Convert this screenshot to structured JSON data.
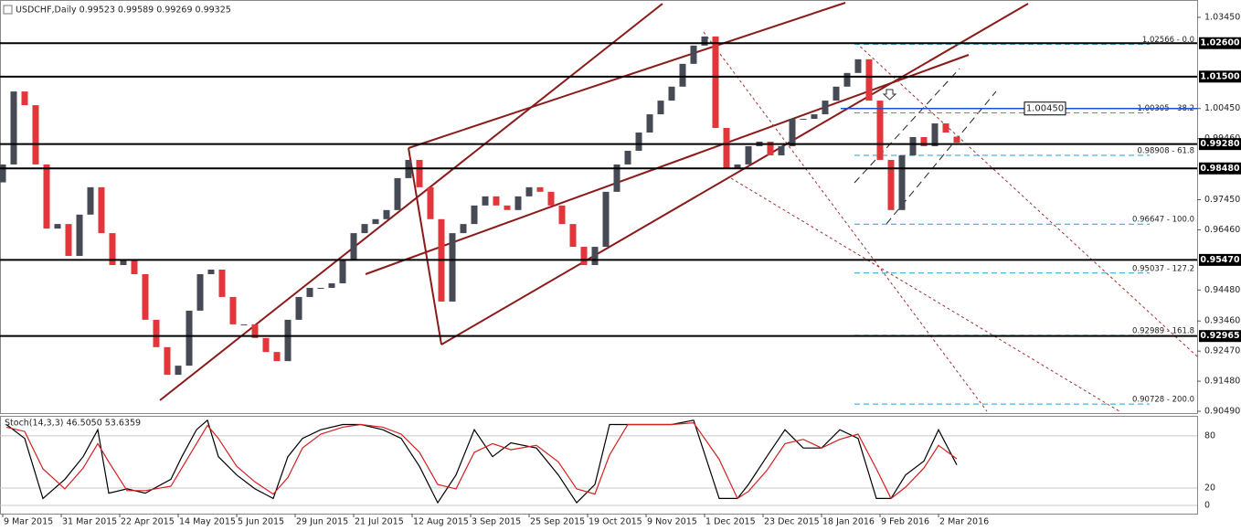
{
  "chart_data": [
    {
      "type": "candlestick",
      "title": "USDCHF,Daily  0.99523 0.99589 0.99269 0.99325",
      "x": [
        0,
        3,
        6,
        9,
        12,
        15,
        18,
        21,
        24,
        27,
        30,
        33,
        36,
        39,
        42,
        45,
        48,
        51,
        54,
        57,
        60,
        63,
        66,
        69,
        72,
        75,
        78,
        81,
        84,
        87,
        90,
        93,
        96,
        99,
        102,
        105,
        108,
        111,
        114,
        117,
        120,
        123,
        126,
        129,
        132,
        135,
        138,
        141,
        144,
        147,
        150,
        153,
        156,
        159,
        162,
        165,
        168,
        171,
        174,
        177,
        180,
        183,
        186,
        189,
        192,
        195,
        198,
        201,
        204,
        207,
        210,
        213,
        216,
        219,
        222,
        225,
        228,
        231,
        234,
        237,
        240,
        243,
        246,
        249,
        252,
        255,
        258,
        261
      ],
      "open": [
        0.9802,
        0.9861,
        1.0101,
        1.0056,
        0.9861,
        0.965,
        0.9665,
        0.956,
        0.9696,
        0.9786,
        0.9635,
        0.953,
        0.9545,
        0.95,
        0.935,
        0.926,
        0.9169,
        0.9199,
        0.938,
        0.95,
        0.9515,
        0.9425,
        0.9335,
        0.9335,
        0.929,
        0.9244,
        0.9214,
        0.935,
        0.9425,
        0.9455,
        0.9455,
        0.947,
        0.9545,
        0.9635,
        0.9665,
        0.9681,
        0.9711,
        0.9816,
        0.9876,
        0.9786,
        0.9681,
        0.941,
        0.9635,
        0.9665,
        0.9726,
        0.9756,
        0.9726,
        0.9711,
        0.9756,
        0.9786,
        0.9771,
        0.9726,
        0.9665,
        0.959,
        0.953,
        0.959,
        0.9771,
        0.9861,
        0.9906,
        0.9966,
        1.0026,
        1.0071,
        1.0117,
        1.0192,
        1.0252,
        1.0282,
        0.9981,
        0.9846,
        0.9861,
        0.9921,
        0.9936,
        0.9891,
        0.9921,
        1.0011,
        1.0011,
        1.0026,
        1.0071,
        1.0117,
        1.0162,
        1.0207,
        1.0071,
        0.9876,
        0.9711,
        0.9891,
        0.9951,
        0.9921,
        0.9996,
        0.99523
      ],
      "close": [
        0.9861,
        1.0101,
        1.0056,
        0.9861,
        0.965,
        0.9665,
        0.956,
        0.9696,
        0.9786,
        0.9635,
        0.953,
        0.9545,
        0.95,
        0.935,
        0.926,
        0.9169,
        0.9199,
        0.938,
        0.95,
        0.9515,
        0.9425,
        0.9335,
        0.9335,
        0.929,
        0.9244,
        0.9214,
        0.935,
        0.9425,
        0.9455,
        0.9455,
        0.947,
        0.9545,
        0.9635,
        0.9665,
        0.9681,
        0.9711,
        0.9816,
        0.9876,
        0.9786,
        0.9681,
        0.941,
        0.9635,
        0.9665,
        0.9726,
        0.9756,
        0.9726,
        0.9711,
        0.9756,
        0.9786,
        0.9771,
        0.9726,
        0.9665,
        0.959,
        0.953,
        0.959,
        0.9771,
        0.9861,
        0.9906,
        0.9966,
        1.0026,
        1.0071,
        1.0117,
        1.0192,
        1.0252,
        1.0282,
        0.9981,
        0.9846,
        0.9861,
        0.9921,
        0.9936,
        0.9891,
        0.9921,
        1.0011,
        1.0011,
        1.0026,
        1.0071,
        1.0117,
        1.0162,
        1.0207,
        1.0071,
        0.9876,
        0.9711,
        0.9891,
        0.9951,
        0.9921,
        0.9996,
        0.9966,
        0.99325
      ],
      "up_color": "#454a55",
      "down_color": "#e0363c",
      "xlim": [
        -0.75,
        326.75
      ],
      "xticks": [
        {
          "value": 0,
          "label": "9 Mar 2015"
        },
        {
          "value": 16,
          "label": "31 Mar 2015"
        },
        {
          "value": 32,
          "label": "22 Apr 2015"
        },
        {
          "value": 48,
          "label": "14 May 2015"
        },
        {
          "value": 64,
          "label": "5 Jun 2015"
        },
        {
          "value": 80,
          "label": "29 Jun 2015"
        },
        {
          "value": 96,
          "label": "21 Jul 2015"
        },
        {
          "value": 112,
          "label": "12 Aug 2015"
        },
        {
          "value": 128,
          "label": "3 Sep 2015"
        },
        {
          "value": 144,
          "label": "25 Sep 2015"
        },
        {
          "value": 160,
          "label": "19 Oct 2015"
        },
        {
          "value": 176,
          "label": "9 Nov 2015"
        },
        {
          "value": 192,
          "label": "1 Dec 2015"
        },
        {
          "value": 208,
          "label": "23 Dec 2015"
        },
        {
          "value": 224,
          "label": "18 Jan 2016"
        },
        {
          "value": 240,
          "label": "9 Feb 2016"
        },
        {
          "value": 256,
          "label": "2 Mar 2016"
        }
      ],
      "ylim": [
        0.9043,
        1.0402
      ],
      "yticks": [
        {
          "value": 1.0345,
          "label": "1.03450"
        },
        {
          "value": 1.0045,
          "label": "1.00450"
        },
        {
          "value": 0.9946,
          "label": "0.99460"
        },
        {
          "value": 0.9745,
          "label": "0.97450"
        },
        {
          "value": 0.9646,
          "label": "0.96460"
        },
        {
          "value": 0.9448,
          "label": "0.94480"
        },
        {
          "value": 0.9346,
          "label": "0.93460"
        },
        {
          "value": 0.9247,
          "label": "0.92470"
        },
        {
          "value": 0.9148,
          "label": "0.91480"
        },
        {
          "value": 0.9049,
          "label": "0.90490"
        }
      ],
      "levels": [
        {
          "value": 1.026,
          "label": "1.02600"
        },
        {
          "value": 1.015,
          "label": "1.01500"
        },
        {
          "value": 0.9928,
          "label": "0.99280"
        },
        {
          "value": 0.9848,
          "label": "0.98480"
        },
        {
          "value": 0.9547,
          "label": "0.95470"
        },
        {
          "value": 0.92965,
          "label": "0.92965"
        }
      ],
      "level_color": "#000000",
      "marker_level": {
        "value": 1.0045,
        "label": "1.00450"
      },
      "marker_color": "#2050c8",
      "fib_levels": [
        {
          "value": 1.02566,
          "label": "1.02566 - 0.0"
        },
        {
          "value": 1.00305,
          "label": "1.00305 - 38.2"
        },
        {
          "value": 0.98908,
          "label": "0.98908 - 61.8"
        },
        {
          "value": 0.96647,
          "label": "0.96647 - 100.0"
        },
        {
          "value": 0.95037,
          "label": "0.95037 - 127.2"
        },
        {
          "value": 0.92989,
          "label": "0.92989 - 161.8"
        },
        {
          "value": 0.90728,
          "label": "0.90728 - 200.0"
        }
      ],
      "fib_color": "#1ea0d8"
    },
    {
      "type": "line",
      "title": "Stoch(14,3,3) 46.5050 53.6359",
      "x": [
        1,
        6,
        11,
        17,
        22,
        26,
        29,
        34,
        39,
        46,
        49,
        53,
        56,
        59,
        64,
        69,
        74,
        78,
        82,
        87,
        93,
        98,
        104,
        109,
        114,
        119,
        124,
        129,
        134,
        139,
        146,
        152,
        157,
        162,
        166,
        171,
        177,
        183,
        189,
        196,
        201,
        204,
        209,
        214,
        219,
        224,
        229,
        234,
        239,
        243,
        247,
        252,
        256,
        261
      ],
      "series": [
        {
          "color": "#000000",
          "values": [
            93,
            77,
            8,
            30,
            56,
            87,
            14,
            19,
            14,
            30,
            56,
            87,
            98,
            56,
            35,
            19,
            8,
            56,
            77,
            87,
            93,
            93,
            87,
            77,
            45,
            3,
            35,
            87,
            56,
            72,
            66,
            35,
            3,
            24,
            93,
            93,
            93,
            93,
            98,
            8,
            8,
            24,
            56,
            87,
            66,
            66,
            87,
            77,
            8,
            8,
            35,
            51,
            87,
            46.505
          ]
        },
        {
          "color": "#d42020",
          "values": [
            90,
            85,
            42,
            19,
            43,
            71,
            50,
            17,
            17,
            22,
            43,
            71,
            92,
            77,
            45,
            27,
            13,
            32,
            66,
            82,
            90,
            93,
            90,
            82,
            61,
            24,
            19,
            61,
            71,
            64,
            69,
            50,
            19,
            13,
            58,
            93,
            93,
            93,
            95,
            53,
            8,
            16,
            40,
            71,
            76,
            66,
            76,
            82,
            42,
            8,
            21,
            43,
            69,
            53.6359
          ]
        }
      ],
      "xlim": [
        -0.75,
        326.75
      ],
      "ylim": [
        -9.5,
        103
      ],
      "yticks": [
        80,
        20,
        0
      ]
    }
  ]
}
